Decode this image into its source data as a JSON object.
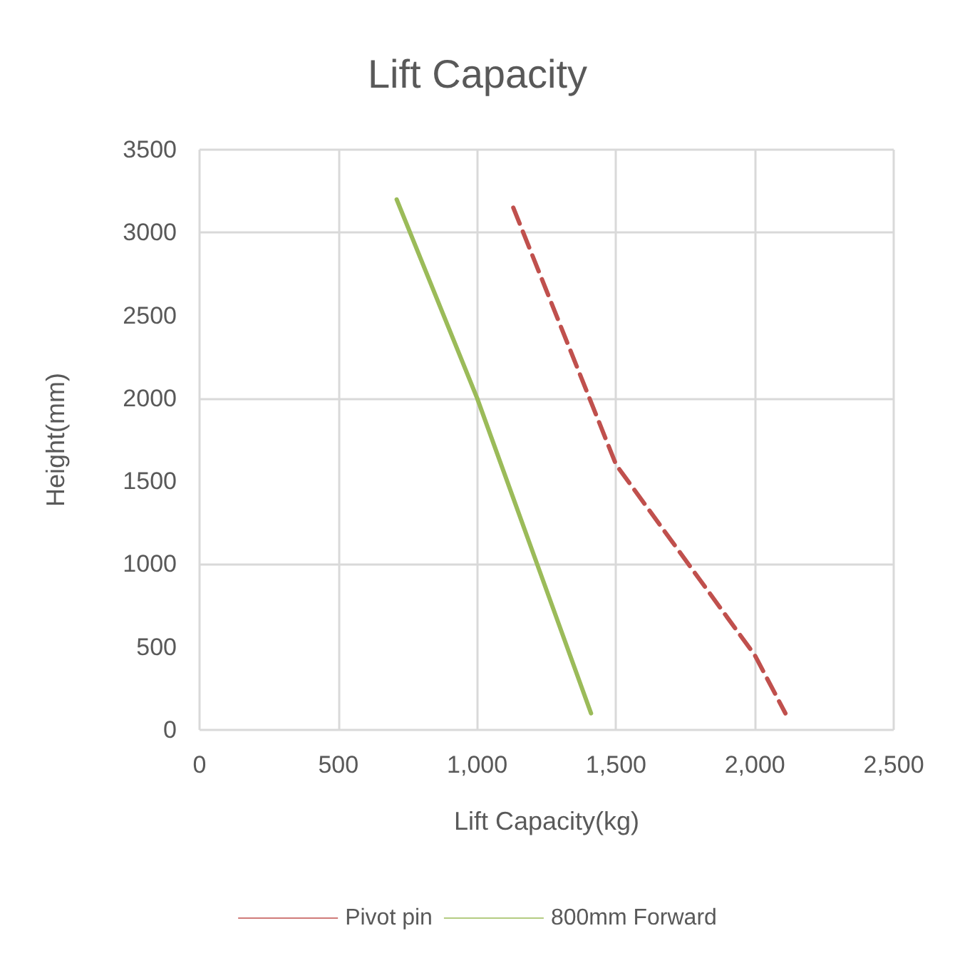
{
  "chart_data": {
    "type": "line",
    "title": "Lift Capacity",
    "xlabel": "Lift Capacity(kg)",
    "ylabel": "Height(mm)",
    "xlim": [
      0,
      2500
    ],
    "xticks": [
      {
        "value": 0,
        "label": "0"
      },
      {
        "value": 500,
        "label": "500"
      },
      {
        "value": 1000,
        "label": "1,000"
      },
      {
        "value": 1500,
        "label": "1,500"
      },
      {
        "value": 2000,
        "label": "2,000"
      },
      {
        "value": 2500,
        "label": "2,500"
      }
    ],
    "ylim": [
      0,
      3500
    ],
    "yticks": [
      0,
      500,
      1000,
      1500,
      2000,
      2500,
      3000,
      3500
    ],
    "grid": true,
    "legend": "bottom",
    "marker": "none",
    "series": [
      {
        "name": "Pivot pin",
        "color": "#c0504d",
        "line_style": "dashed",
        "x": [
          1130,
          1500,
          2000,
          2110
        ],
        "values": [
          3150,
          1600,
          450,
          100
        ]
      },
      {
        "name": "800mm Forward",
        "color": "#9bbb59",
        "line_style": "solid",
        "x": [
          710,
          1000,
          1410
        ],
        "values": [
          3200,
          2000,
          100
        ]
      }
    ]
  }
}
